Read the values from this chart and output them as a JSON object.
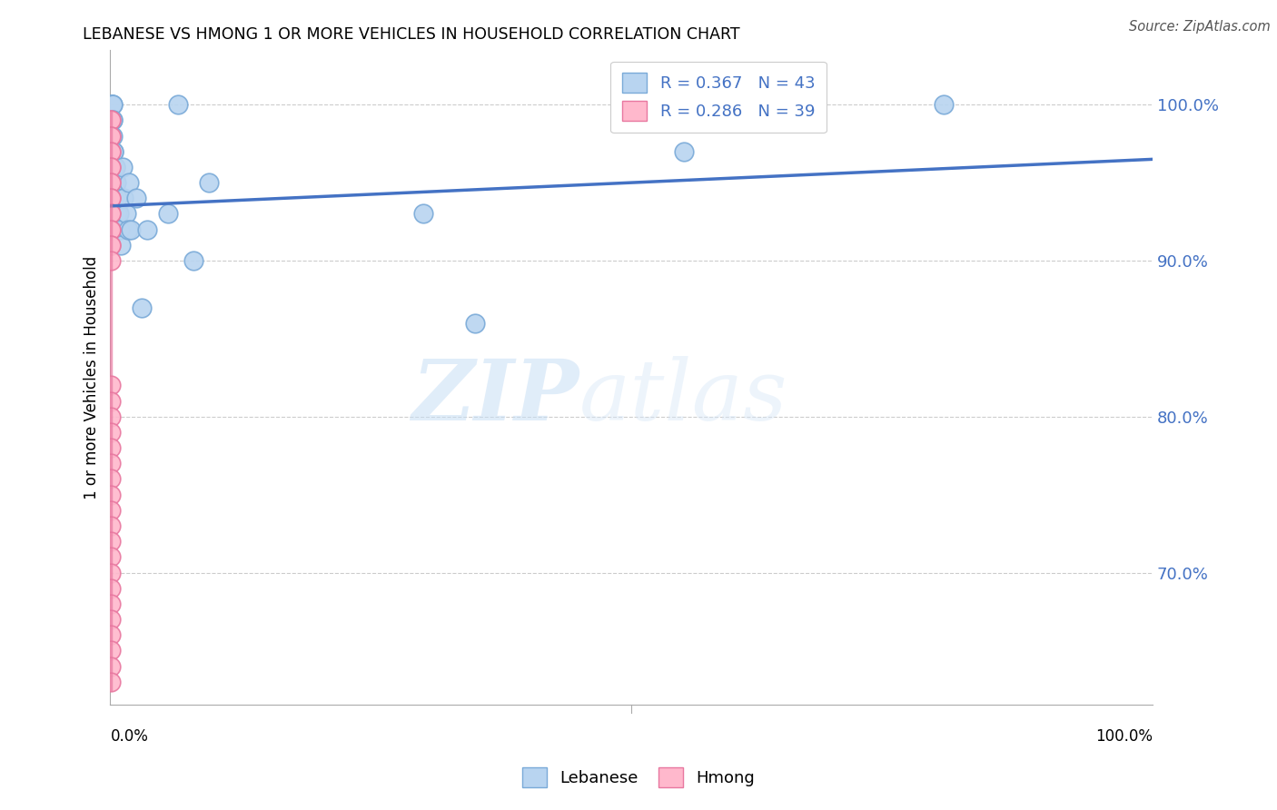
{
  "title": "LEBANESE VS HMONG 1 OR MORE VEHICLES IN HOUSEHOLD CORRELATION CHART",
  "source": "Source: ZipAtlas.com",
  "ylabel": "1 or more Vehicles in Household",
  "ytick_labels": [
    "100.0%",
    "90.0%",
    "80.0%",
    "70.0%"
  ],
  "ytick_values": [
    1.0,
    0.9,
    0.8,
    0.7
  ],
  "xlim": [
    0.0,
    1.0
  ],
  "ylim": [
    0.615,
    1.035
  ],
  "legend_r_lebanese": "R = 0.367",
  "legend_n_lebanese": "N = 43",
  "legend_r_hmong": "R = 0.286",
  "legend_n_hmong": "N = 39",
  "lebanese_color": "#b8d4f0",
  "lebanese_edge_color": "#7aaad8",
  "hmong_color": "#ffb8cc",
  "hmong_edge_color": "#e878a0",
  "trendline_color": "#4472c4",
  "lebanese_x": [
    0.001,
    0.001,
    0.001,
    0.001,
    0.001,
    0.002,
    0.002,
    0.002,
    0.002,
    0.002,
    0.003,
    0.003,
    0.003,
    0.003,
    0.004,
    0.004,
    0.004,
    0.005,
    0.005,
    0.006,
    0.007,
    0.007,
    0.008,
    0.009,
    0.01,
    0.012,
    0.013,
    0.015,
    0.017,
    0.018,
    0.02,
    0.025,
    0.03,
    0.035,
    0.055,
    0.065,
    0.08,
    0.095,
    0.3,
    0.35,
    0.55,
    0.67,
    0.8
  ],
  "lebanese_y": [
    0.97,
    0.98,
    0.99,
    1.0,
    1.0,
    1.0,
    1.0,
    0.99,
    0.99,
    0.98,
    0.97,
    0.97,
    0.96,
    0.96,
    0.95,
    0.95,
    0.94,
    0.96,
    0.96,
    0.95,
    0.94,
    0.93,
    0.93,
    0.92,
    0.91,
    0.96,
    0.94,
    0.93,
    0.92,
    0.95,
    0.92,
    0.94,
    0.87,
    0.92,
    0.93,
    1.0,
    0.9,
    0.95,
    0.93,
    0.86,
    0.97,
    1.0,
    1.0
  ],
  "hmong_x": [
    0.0005,
    0.0005,
    0.0005,
    0.0005,
    0.0005,
    0.0005,
    0.0005,
    0.0005,
    0.0005,
    0.0005,
    0.0005,
    0.0005,
    0.0005,
    0.0005,
    0.0005,
    0.0005,
    0.0005,
    0.0005,
    0.0005,
    0.0005,
    0.0005,
    0.0005,
    0.0005,
    0.0005,
    0.0005,
    0.0005,
    0.0005,
    0.0005,
    0.0005,
    0.0005,
    0.0005,
    0.0005,
    0.0005,
    0.0005,
    0.0005,
    0.0005,
    0.0005,
    0.0005,
    0.0005
  ],
  "hmong_y": [
    0.99,
    0.99,
    0.98,
    0.98,
    0.97,
    0.97,
    0.96,
    0.96,
    0.95,
    0.95,
    0.94,
    0.94,
    0.93,
    0.93,
    0.92,
    0.92,
    0.91,
    0.91,
    0.9,
    0.82,
    0.81,
    0.8,
    0.79,
    0.78,
    0.77,
    0.76,
    0.75,
    0.74,
    0.73,
    0.72,
    0.71,
    0.7,
    0.69,
    0.68,
    0.67,
    0.66,
    0.65,
    0.64,
    0.63
  ],
  "trendline_x_start": 0.0,
  "trendline_x_end": 1.0,
  "trendline_y_start": 0.935,
  "trendline_y_end": 0.965,
  "watermark_zip": "ZIP",
  "watermark_atlas": "atlas",
  "background_color": "#ffffff"
}
